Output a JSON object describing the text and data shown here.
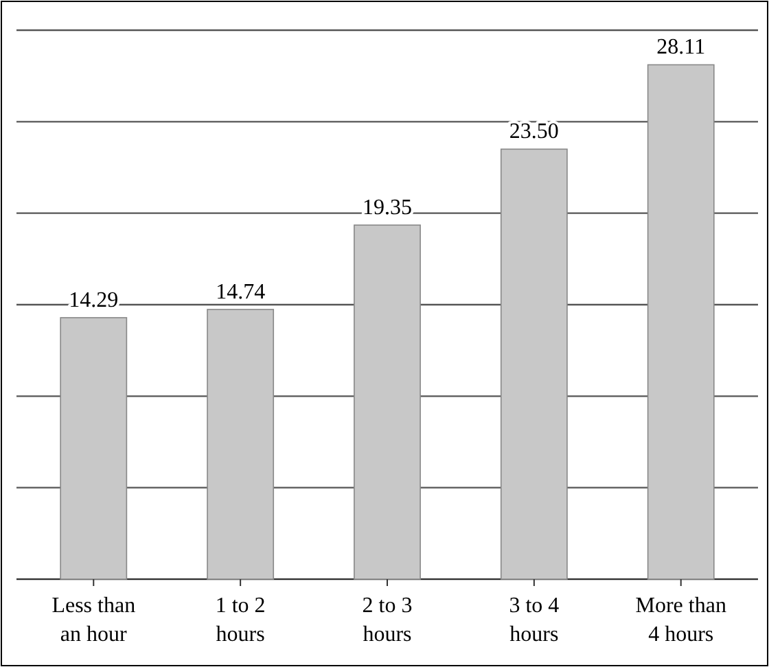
{
  "chart_data": {
    "type": "bar",
    "categories": [
      "Less than\nan hour",
      "1 to 2\nhours",
      "2 to 3\nhours",
      "3 to 4\nhours",
      "More than\n4 hours"
    ],
    "values": [
      14.29,
      14.74,
      19.35,
      23.5,
      28.11
    ],
    "value_labels": [
      "14.29",
      "14.74",
      "19.35",
      "23.50",
      "28.11"
    ],
    "color": "#c8c8c8",
    "ylim": [
      0,
      30
    ],
    "yticks": [
      {
        "value": 0,
        "label": null
      },
      {
        "value": 5,
        "label": null
      },
      {
        "value": 10,
        "label": null
      },
      {
        "value": 15,
        "label": null
      },
      {
        "value": 20,
        "label": null
      },
      {
        "value": 25,
        "label": null
      },
      {
        "value": 30,
        "label": null
      }
    ],
    "grid": "y",
    "tick_labels": "x"
  }
}
